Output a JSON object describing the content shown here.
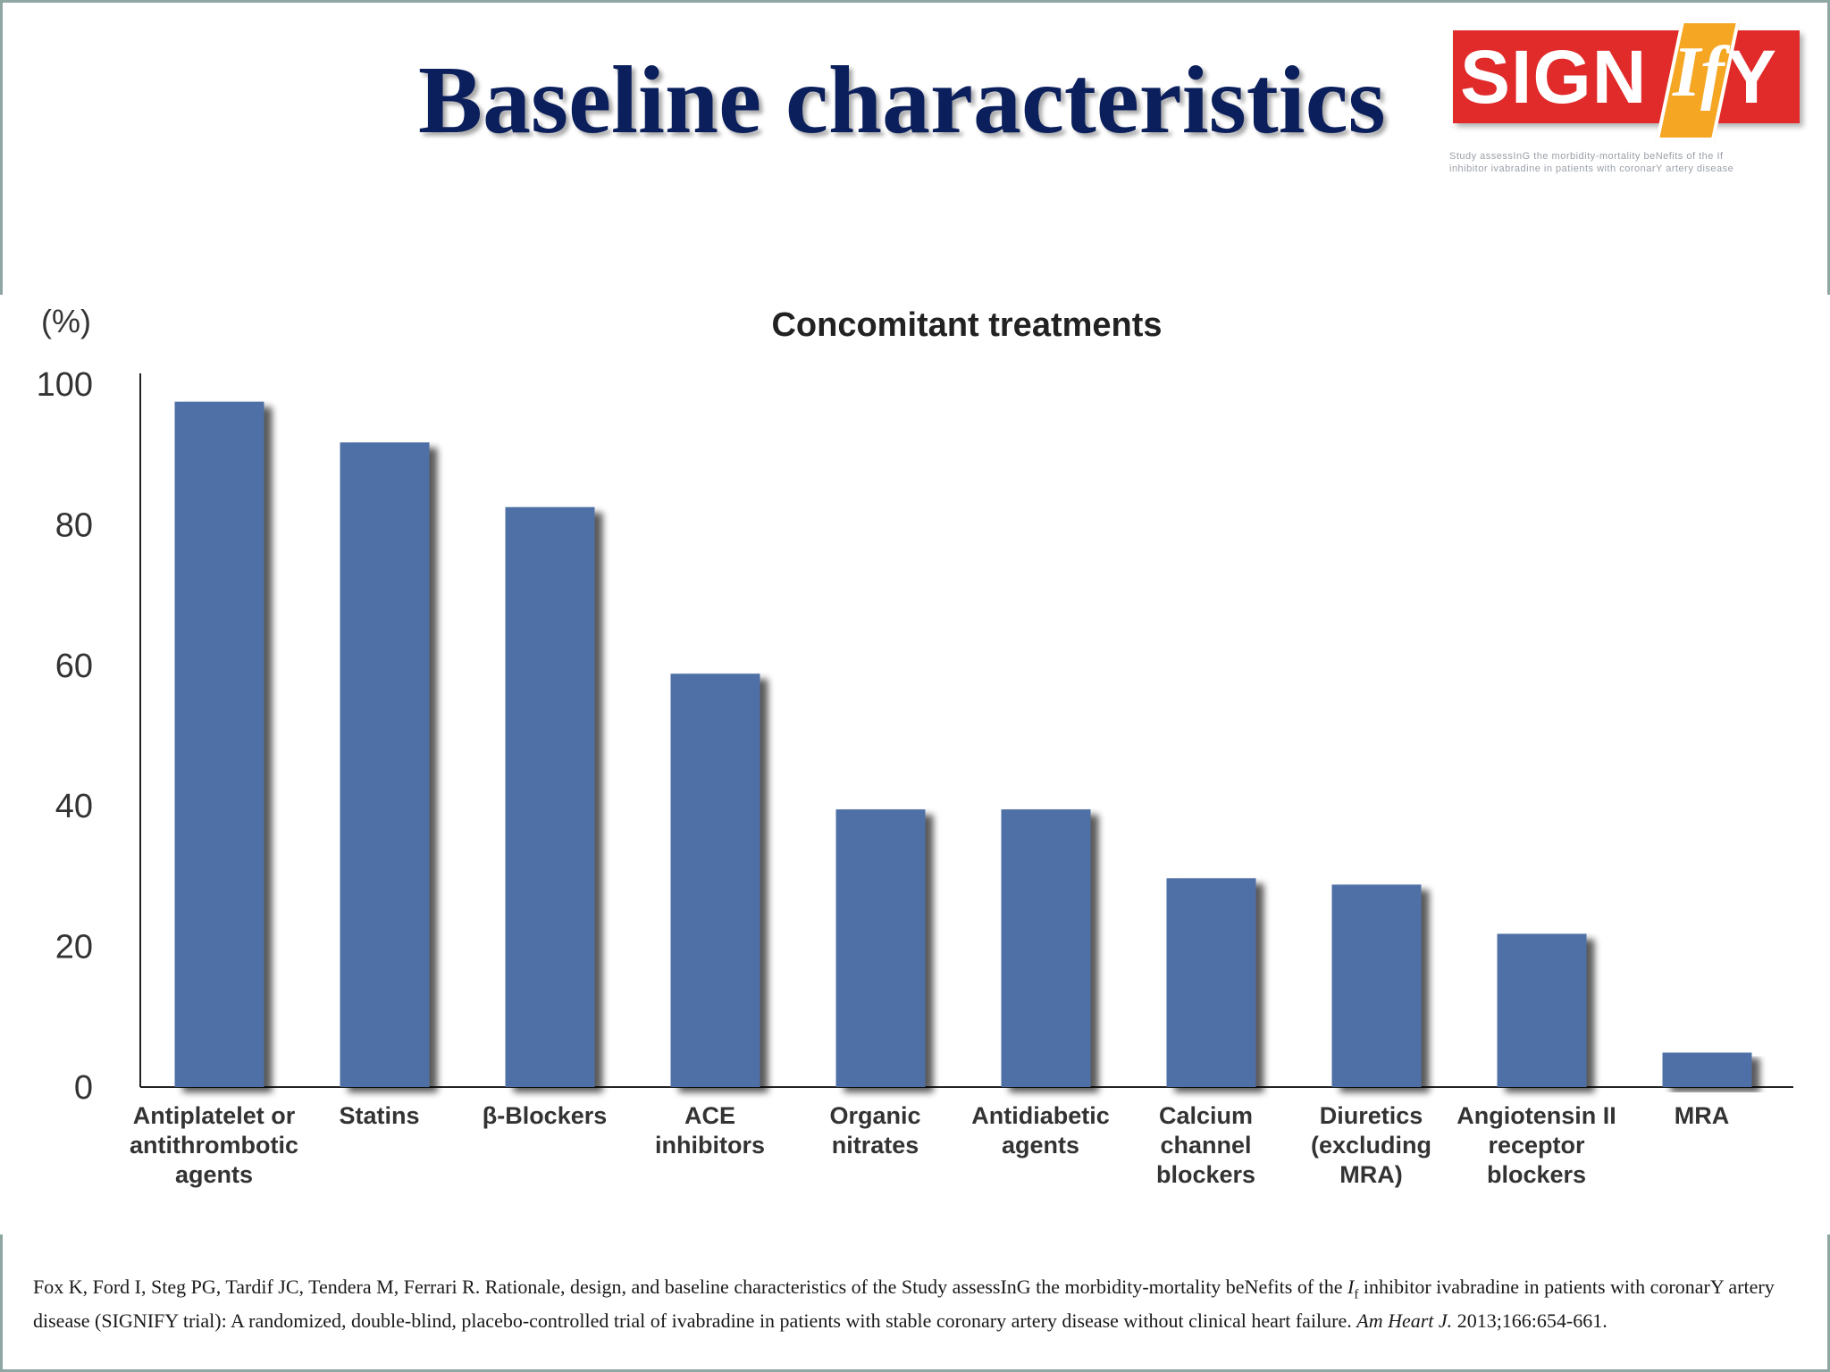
{
  "slide": {
    "title": "Baseline characteristics"
  },
  "logo": {
    "name_a": "SIGN",
    "name_if": "If",
    "name_b": "Y",
    "tagline_line1": "Study assessInG the morbidity-mortality beNefits of the If",
    "tagline_line2": "inhibitor ivabradine in patients with coronarY artery disease"
  },
  "colors": {
    "title": "#0b1f5c",
    "bar": "#4f6fa6",
    "logo_red": "#e12a2a",
    "logo_orange": "#f5a623"
  },
  "chart_data": {
    "type": "bar",
    "title": "Concomitant treatments",
    "ylabel": "(%)",
    "xlabel": "",
    "ylim": [
      0,
      100
    ],
    "yticks": [
      0,
      20,
      40,
      60,
      80,
      100
    ],
    "grid": false,
    "categories": [
      [
        "Antiplatelet or",
        "antithrombotic",
        "agents"
      ],
      [
        "Statins"
      ],
      [
        "β-Blockers"
      ],
      [
        "ACE",
        "inhibitors"
      ],
      [
        "Organic",
        "nitrates"
      ],
      [
        "Antidiabetic",
        "agents"
      ],
      [
        "Calcium",
        "channel",
        "blockers"
      ],
      [
        "Diuretics",
        "(excluding",
        "MRA)"
      ],
      [
        "Angiotensin II",
        "receptor",
        "blockers"
      ],
      [
        "MRA"
      ]
    ],
    "values": [
      97.5,
      91.7,
      82.5,
      58.8,
      39.5,
      39.5,
      29.7,
      28.8,
      21.8,
      4.9
    ]
  },
  "citation": {
    "text_before": "Fox K, Ford I, Steg PG, Tardif JC, Tendera M, Ferrari R. Rationale, design, and baseline characteristics of the Study assessInG the morbidity-mortality beNefits of the ",
    "italic_i": "I",
    "subscript_f": "f",
    "text_after": " inhibitor ivabradine in patients with coronarY artery disease (SIGNIFY trial): A randomized, double-blind, placebo-controlled trial of ivabradine in patients with stable coronary artery disease without clinical heart failure. ",
    "journal": "Am Heart J.",
    "ref": " 2013;166:654-661."
  }
}
